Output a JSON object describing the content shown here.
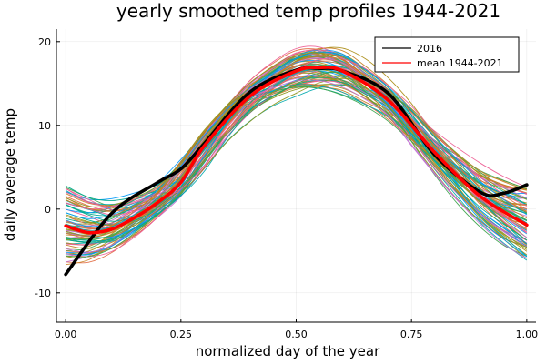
{
  "chart_data": {
    "type": "line",
    "title": "yearly smoothed temp profiles 1944-2021",
    "xlabel": "normalized day of the year",
    "ylabel": "daily average temp",
    "xlim": [
      -0.02,
      1.02
    ],
    "ylim": [
      -13.5,
      21.5
    ],
    "xticks": [
      0.0,
      0.25,
      0.5,
      0.75,
      1.0
    ],
    "xtick_labels": [
      "0.00",
      "0.25",
      "0.50",
      "0.75",
      "1.00"
    ],
    "yticks": [
      -10,
      0,
      10,
      20
    ],
    "ytick_labels": [
      "-10",
      "0",
      "10",
      "20"
    ],
    "grid": true,
    "legend_position": "top-right",
    "palette": [
      "#009af9",
      "#e26f46",
      "#3da44d",
      "#c271d2",
      "#ac8e18",
      "#00a9ad",
      "#ed5e93",
      "#c68225",
      "#00a98d",
      "#8e971d"
    ],
    "years": {
      "start": 1944,
      "end": 2021
    },
    "highlight": [
      {
        "name": "2016",
        "color": "#000000",
        "x": [
          0.0,
          0.1,
          0.2,
          0.25,
          0.3,
          0.4,
          0.5,
          0.55,
          0.6,
          0.7,
          0.8,
          0.9,
          0.95,
          1.0
        ],
        "y": [
          -7.8,
          -0.5,
          3.2,
          4.8,
          7.8,
          14.0,
          16.6,
          16.8,
          16.5,
          13.8,
          6.5,
          2.0,
          1.9,
          2.9
        ]
      },
      {
        "name": "mean 1944-2021",
        "color": "#ff0000",
        "x": [
          0.0,
          0.05,
          0.1,
          0.15,
          0.2,
          0.25,
          0.3,
          0.4,
          0.5,
          0.55,
          0.6,
          0.7,
          0.8,
          0.9,
          1.0
        ],
        "y": [
          -2.0,
          -2.8,
          -2.4,
          -1.0,
          0.8,
          3.2,
          7.5,
          13.5,
          16.5,
          16.9,
          16.5,
          13.0,
          6.8,
          1.5,
          -1.9
        ]
      }
    ]
  }
}
